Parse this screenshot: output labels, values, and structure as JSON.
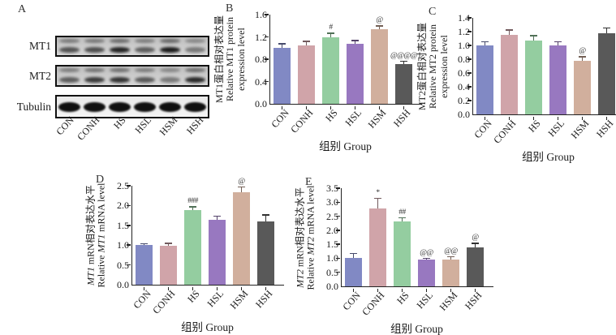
{
  "panel_a": {
    "label": "A",
    "row_labels": [
      "MT1",
      "MT2",
      "Tubulin"
    ],
    "lane_labels": [
      "CON",
      "CONH",
      "HS",
      "HSL",
      "HSM",
      "HSH"
    ],
    "band_intensities": {
      "MT1": [
        0.65,
        0.68,
        0.9,
        0.6,
        0.95,
        0.45
      ],
      "MT2": [
        0.6,
        0.78,
        0.82,
        0.62,
        0.45,
        0.88
      ],
      "Tubulin": [
        0.95,
        0.95,
        0.95,
        0.95,
        0.95,
        0.95
      ]
    }
  },
  "group_colors": {
    "CON": "#8189c4",
    "CONH": "#d0a4a9",
    "HS": "#94cda0",
    "HSL": "#9878c0",
    "HSM": "#d1af9d",
    "HSH": "#595959"
  },
  "axis_color": "#222222",
  "chart_data": [
    {
      "id": "B",
      "type": "bar",
      "categories": [
        "CON",
        "CONH",
        "HS",
        "HSL",
        "HSM",
        "HSH"
      ],
      "values": [
        1.0,
        1.05,
        1.19,
        1.07,
        1.34,
        0.71
      ],
      "errors": [
        0.07,
        0.07,
        0.07,
        0.06,
        0.05,
        0.05
      ],
      "annotations": [
        "",
        "",
        "#",
        "",
        "@",
        "@@@@"
      ],
      "ylabel_lines": [
        "MT1蛋白相对表达量",
        "Relative MT1 protein",
        "expression level"
      ],
      "xlabel": "组别  Group",
      "ylim": [
        0,
        1.6
      ],
      "ytick_step": 0.4,
      "gene_italic": false,
      "grid": false,
      "legend": "none"
    },
    {
      "id": "C",
      "type": "bar",
      "categories": [
        "CON",
        "CONH",
        "HS",
        "HSL",
        "HSM",
        "HSH"
      ],
      "values": [
        1.0,
        1.15,
        1.07,
        1.0,
        0.78,
        1.18
      ],
      "errors": [
        0.05,
        0.07,
        0.07,
        0.05,
        0.05,
        0.07
      ],
      "annotations": [
        "",
        "",
        "",
        "",
        "@",
        ""
      ],
      "ylabel_lines": [
        "MT2蛋白相对表达量",
        "Relative MT2 protein",
        "expression level"
      ],
      "xlabel": "组别  Group",
      "ylim": [
        0,
        1.4
      ],
      "ytick_step": 0.2,
      "gene_italic": false,
      "grid": false,
      "legend": "none"
    },
    {
      "id": "D",
      "type": "bar",
      "categories": [
        "CON",
        "CONH",
        "HS",
        "HSL",
        "HSM",
        "HSH"
      ],
      "values": [
        1.0,
        0.98,
        1.88,
        1.63,
        2.34,
        1.59
      ],
      "errors": [
        0.03,
        0.06,
        0.08,
        0.1,
        0.12,
        0.17
      ],
      "annotations": [
        "",
        "",
        "###",
        "",
        "@",
        ""
      ],
      "ylabel_lines": [
        "MT1 mRN相对表达水平",
        "Relative MT1 mRNA level"
      ],
      "xlabel": "组别  Group",
      "ylim": [
        0,
        2.5
      ],
      "ytick_step": 0.5,
      "gene_italic": true,
      "grid": false,
      "legend": "none"
    },
    {
      "id": "E",
      "type": "bar",
      "categories": [
        "CON",
        "CONH",
        "HS",
        "HSL",
        "HSM",
        "HSH"
      ],
      "values": [
        1.02,
        2.78,
        2.32,
        0.95,
        0.95,
        1.4
      ],
      "errors": [
        0.15,
        0.35,
        0.12,
        0.04,
        0.1,
        0.13
      ],
      "annotations": [
        "",
        "*",
        "##",
        "@@",
        "@@",
        "@"
      ],
      "ylabel_lines": [
        "MT2 mRN相对表达水平",
        "Relative MT2 mRNA level"
      ],
      "xlabel": "组别  Group",
      "ylim": [
        0,
        3.5
      ],
      "ytick_step": 0.5,
      "gene_italic": true,
      "grid": false,
      "legend": "none"
    }
  ]
}
